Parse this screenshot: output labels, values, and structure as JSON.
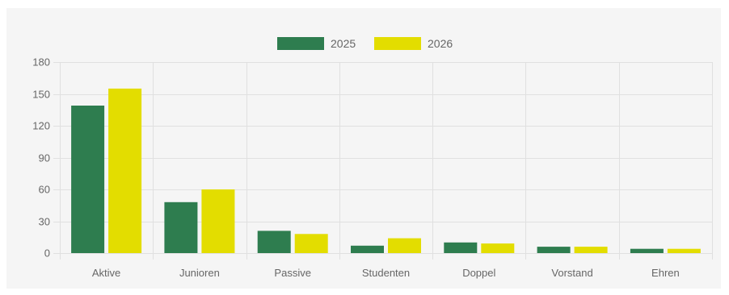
{
  "chart_data": {
    "type": "bar",
    "categories": [
      "Aktive",
      "Junioren",
      "Passive",
      "Studenten",
      "Doppel",
      "Vorstand",
      "Ehren"
    ],
    "series": [
      {
        "name": "2025",
        "color": "#2e7d4f",
        "values": [
          139,
          48,
          21,
          7,
          10,
          6,
          4
        ]
      },
      {
        "name": "2026",
        "color": "#e3dd00",
        "values": [
          155,
          60,
          18,
          14,
          9,
          6,
          4
        ]
      }
    ],
    "ylim": [
      0,
      180
    ],
    "yticks": [
      0,
      30,
      60,
      90,
      120,
      150,
      180
    ],
    "grid": true,
    "legend": "top-center"
  }
}
